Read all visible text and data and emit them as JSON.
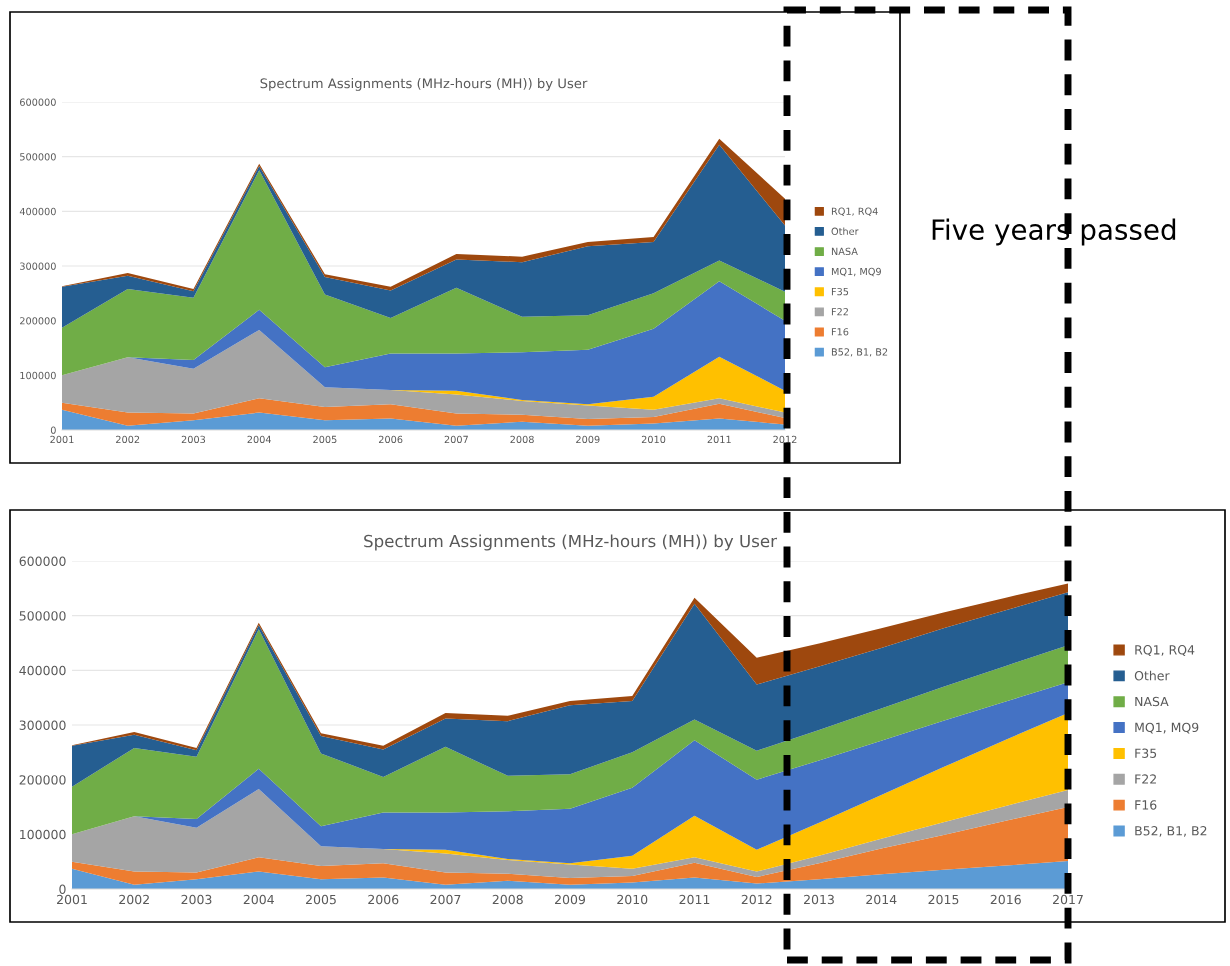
{
  "chart_data": [
    {
      "type": "area",
      "stacked": true,
      "title": "Spectrum Assignments (MHz-hours (MH)) by User",
      "categories": [
        "2001",
        "2002",
        "2003",
        "2004",
        "2005",
        "2006",
        "2007",
        "2008",
        "2009",
        "2010",
        "2011",
        "2012"
      ],
      "ylim": [
        0,
        600000
      ],
      "yticks": [
        0,
        100000,
        200000,
        300000,
        400000,
        500000,
        600000
      ],
      "grid": "y",
      "legend": "right",
      "annotations": [
        "Five years passed"
      ],
      "series": [
        {
          "name": "B52, B1, B2",
          "color": "#5b9bd5",
          "values": [
            37000,
            8000,
            18000,
            32000,
            18000,
            21000,
            8000,
            15000,
            8000,
            12000,
            21000,
            10000
          ]
        },
        {
          "name": "F16",
          "color": "#ed7d31",
          "values": [
            13000,
            24000,
            12000,
            26000,
            24000,
            26000,
            22000,
            13000,
            12000,
            12000,
            27000,
            12000
          ]
        },
        {
          "name": "F22",
          "color": "#a5a5a5",
          "values": [
            50000,
            101000,
            82000,
            125000,
            36000,
            26000,
            35000,
            25000,
            25000,
            13000,
            10000,
            10000
          ]
        },
        {
          "name": "F35",
          "color": "#ffc000",
          "values": [
            0,
            0,
            0,
            0,
            0,
            0,
            7000,
            2000,
            2000,
            24000,
            76000,
            40000
          ]
        },
        {
          "name": "MQ1, MQ9",
          "color": "#4472c4",
          "values": [
            0,
            0,
            16000,
            37000,
            37000,
            67000,
            68000,
            87000,
            100000,
            124000,
            138000,
            128000
          ]
        },
        {
          "name": "NASA",
          "color": "#70ad47",
          "values": [
            87000,
            125000,
            114000,
            255000,
            133000,
            65000,
            120000,
            65000,
            63000,
            65000,
            38000,
            53000
          ]
        },
        {
          "name": "Other",
          "color": "#255e91",
          "values": [
            75000,
            24000,
            12000,
            8000,
            32000,
            50000,
            52000,
            100000,
            126000,
            94000,
            212000,
            121000
          ]
        },
        {
          "name": "RQ1, RQ4",
          "color": "#9e480e",
          "values": [
            1000,
            5000,
            4000,
            4000,
            5000,
            7000,
            10000,
            10000,
            8000,
            9000,
            11000,
            49000
          ]
        }
      ]
    },
    {
      "type": "area",
      "stacked": true,
      "title": "Spectrum Assignments (MHz-hours (MH)) by User",
      "categories": [
        "2001",
        "2002",
        "2003",
        "2004",
        "2005",
        "2006",
        "2007",
        "2008",
        "2009",
        "2010",
        "2011",
        "2012",
        "2013",
        "2014",
        "2015",
        "2016",
        "2017"
      ],
      "ylim": [
        0,
        600000
      ],
      "yticks": [
        0,
        100000,
        200000,
        300000,
        400000,
        500000,
        600000
      ],
      "grid": "y",
      "legend": "right",
      "series": [
        {
          "name": "B52, B1, B2",
          "color": "#5b9bd5",
          "values": [
            37000,
            8000,
            18000,
            32000,
            18000,
            21000,
            8000,
            15000,
            8000,
            12000,
            21000,
            10000,
            18000,
            27000,
            35000,
            43000,
            51000
          ]
        },
        {
          "name": "F16",
          "color": "#ed7d31",
          "values": [
            13000,
            24000,
            12000,
            26000,
            24000,
            26000,
            22000,
            13000,
            12000,
            12000,
            27000,
            12000,
            29000,
            47000,
            64000,
            82000,
            99000
          ]
        },
        {
          "name": "F22",
          "color": "#a5a5a5",
          "values": [
            50000,
            101000,
            82000,
            125000,
            36000,
            26000,
            35000,
            25000,
            25000,
            13000,
            10000,
            10000,
            14000,
            18000,
            23000,
            27000,
            31000
          ]
        },
        {
          "name": "F35",
          "color": "#ffc000",
          "values": [
            0,
            0,
            0,
            0,
            0,
            0,
            7000,
            2000,
            2000,
            24000,
            76000,
            40000,
            60000,
            80000,
            101000,
            121000,
            141000
          ]
        },
        {
          "name": "MQ1, MQ9",
          "color": "#4472c4",
          "values": [
            0,
            0,
            16000,
            37000,
            37000,
            67000,
            68000,
            87000,
            100000,
            124000,
            138000,
            128000,
            114000,
            99000,
            85000,
            70000,
            56000
          ]
        },
        {
          "name": "NASA",
          "color": "#70ad47",
          "values": [
            87000,
            125000,
            114000,
            255000,
            133000,
            65000,
            120000,
            65000,
            63000,
            65000,
            38000,
            53000,
            56000,
            59000,
            62000,
            65000,
            68000
          ]
        },
        {
          "name": "Other",
          "color": "#255e91",
          "values": [
            75000,
            24000,
            12000,
            8000,
            32000,
            50000,
            52000,
            100000,
            126000,
            94000,
            212000,
            121000,
            116000,
            111000,
            107000,
            102000,
            97000
          ]
        },
        {
          "name": "RQ1, RQ4",
          "color": "#9e480e",
          "values": [
            1000,
            5000,
            4000,
            4000,
            5000,
            7000,
            10000,
            10000,
            8000,
            9000,
            11000,
            49000,
            42000,
            36000,
            29000,
            23000,
            16000
          ]
        }
      ]
    }
  ]
}
